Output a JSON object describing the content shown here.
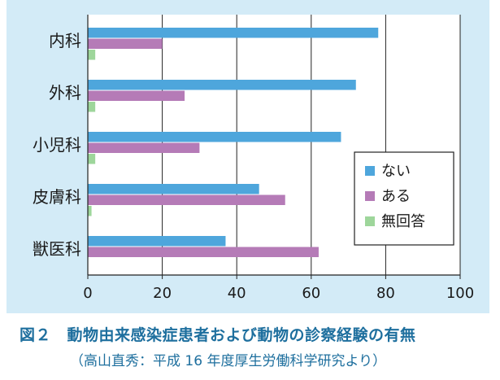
{
  "chart_data": {
    "type": "bar",
    "orientation": "horizontal",
    "categories": [
      "内科",
      "外科",
      "小児科",
      "皮膚科",
      "獣医科"
    ],
    "series": [
      {
        "name": "ない",
        "color": "#4ea6dc",
        "values": [
          78,
          72,
          68,
          46,
          37
        ]
      },
      {
        "name": "ある",
        "color": "#b57bb7",
        "values": [
          20,
          26,
          30,
          53,
          62
        ]
      },
      {
        "name": "無回答",
        "color": "#9ed69b",
        "values": [
          2,
          2,
          2,
          1,
          0
        ]
      }
    ],
    "xlim": [
      0,
      100
    ],
    "xticks": [
      "0",
      "20",
      "40",
      "60",
      "80",
      "100"
    ],
    "grid": true,
    "legend_position": "right"
  },
  "caption": {
    "title": "図２　動物由来感染症患者および動物の診察経験の有無",
    "source": "（高山直秀：平成 16 年度厚生労働科学研究より）"
  }
}
